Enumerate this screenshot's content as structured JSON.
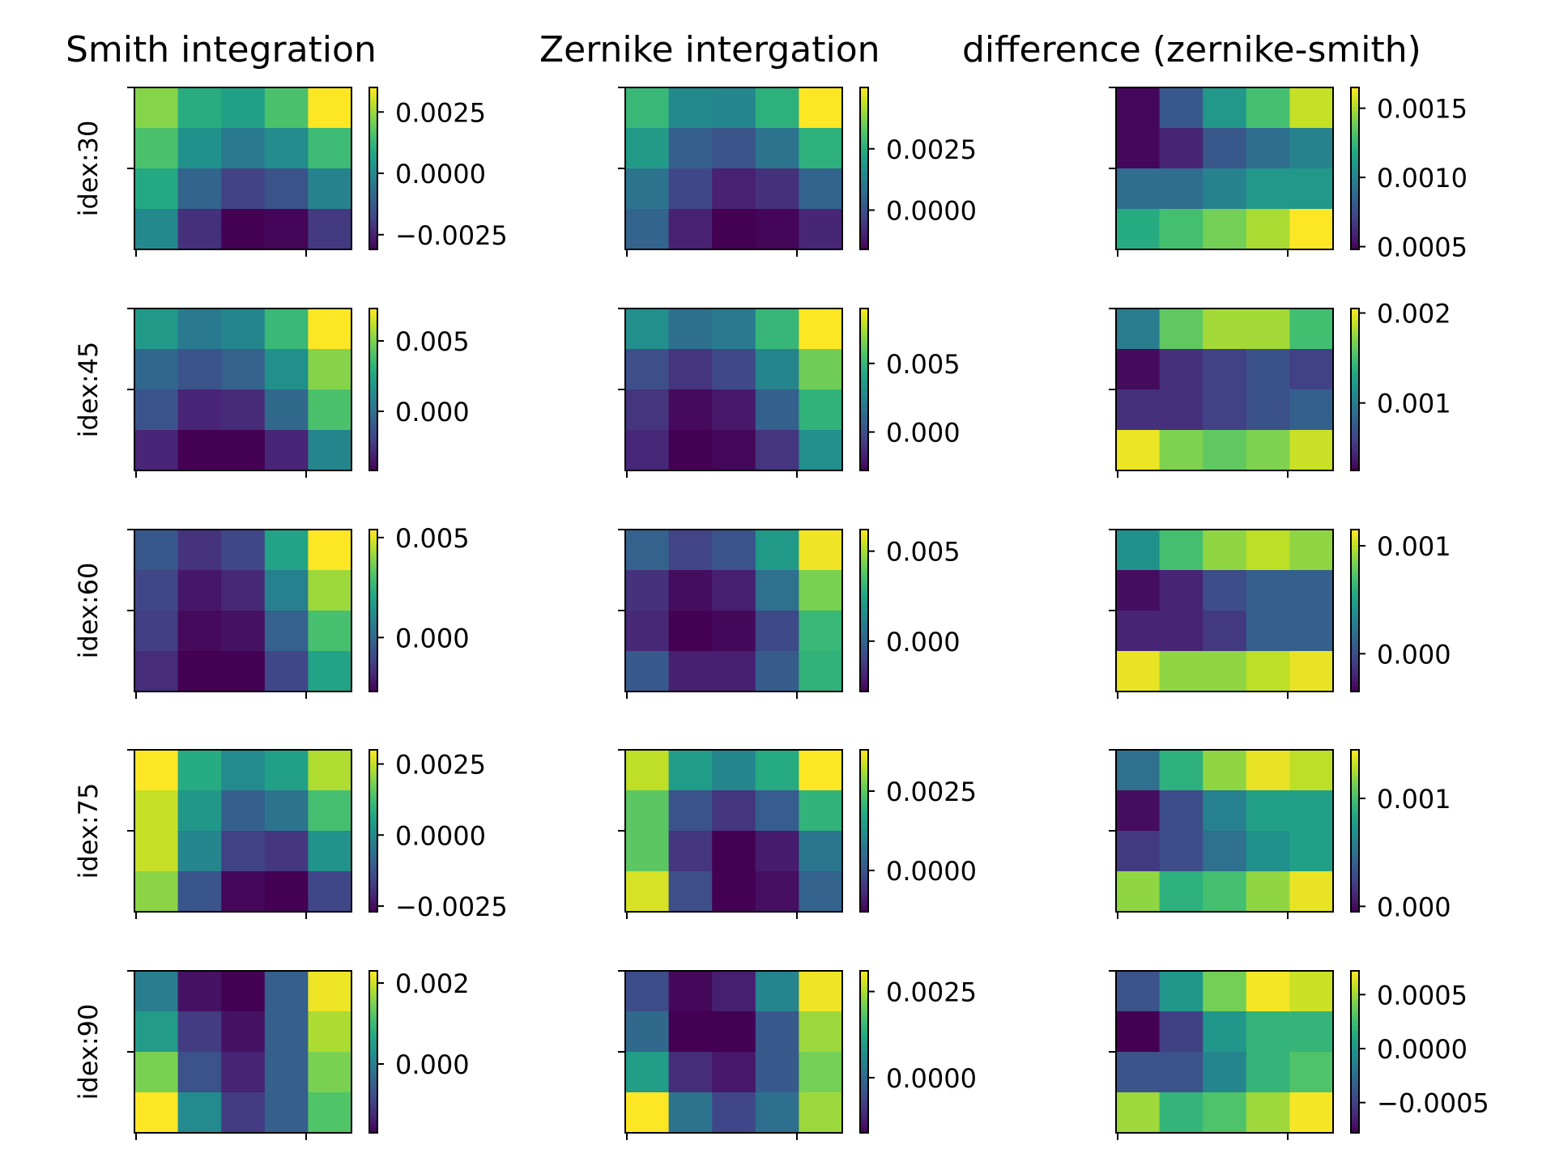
{
  "figure": {
    "column_titles": [
      "Smith integration",
      "Zernike intergation",
      "difference (zernike-smith)"
    ],
    "row_labels": [
      "idex:30",
      "idex:45",
      "idex:60",
      "idex:75",
      "idex:90"
    ]
  },
  "chart_data": {
    "type": "heatmap",
    "colormap": "viridis",
    "grid": false,
    "grid_shape": [
      4,
      5
    ],
    "rows": [
      {
        "label": "idex:30",
        "panels": [
          {
            "name": "Smith integration",
            "clim": [
              -0.0031,
              0.0035
            ],
            "cbar_ticks": [
              0.0025,
              0.0,
              -0.0025
            ],
            "cbar_tick_labels": [
              "0.0025",
              "0.0000",
              "−0.0025"
            ],
            "values": [
              [
                0.0023,
                0.001,
                0.0006,
                0.0016,
                0.0035
              ],
              [
                0.0016,
                0.0002,
                -0.0004,
                0.0001,
                0.0014
              ],
              [
                0.0009,
                -0.001,
                -0.0018,
                -0.0014,
                -0.0002
              ],
              [
                0.0,
                -0.0022,
                -0.0031,
                -0.003,
                -0.002
              ]
            ]
          },
          {
            "name": "Zernike intergation",
            "clim": [
              -0.0016,
              0.005
            ],
            "cbar_ticks": [
              0.0025,
              0.0
            ],
            "cbar_tick_labels": [
              "0.0025",
              "0.0000"
            ],
            "values": [
              [
                0.0028,
                0.0015,
                0.0014,
                0.0026,
                0.005
              ],
              [
                0.002,
                0.0004,
                0.0001,
                0.0009,
                0.0026
              ],
              [
                0.0009,
                -0.0002,
                -0.001,
                -0.0007,
                0.0005
              ],
              [
                0.0005,
                -0.001,
                -0.0016,
                -0.0015,
                -0.0009
              ]
            ]
          },
          {
            "name": "difference (zernike-smith)",
            "clim": [
              0.00048,
              0.00165
            ],
            "cbar_ticks": [
              0.0015,
              0.001,
              0.0005
            ],
            "cbar_tick_labels": [
              "0.0015",
              "0.0010",
              "0.0005"
            ],
            "values": [
              [
                0.0005,
                0.0008,
                0.0011,
                0.0013,
                0.00155
              ],
              [
                0.0005,
                0.0006,
                0.0008,
                0.0009,
                0.001
              ],
              [
                0.0009,
                0.0009,
                0.001,
                0.0011,
                0.0011
              ],
              [
                0.0012,
                0.0013,
                0.0014,
                0.0015,
                0.00165
              ]
            ]
          }
        ]
      },
      {
        "label": "idex:45",
        "panels": [
          {
            "name": "Smith integration",
            "clim": [
              -0.0042,
              0.0073
            ],
            "cbar_ticks": [
              0.005,
              0.0
            ],
            "cbar_tick_labels": [
              "0.005",
              "0.000"
            ],
            "values": [
              [
                0.002,
                0.0005,
                0.001,
                0.0035,
                0.0073
              ],
              [
                -0.0004,
                -0.0012,
                -0.0006,
                0.0015,
                0.0052
              ],
              [
                -0.0012,
                -0.003,
                -0.0028,
                -0.0003,
                0.004
              ],
              [
                -0.003,
                -0.0042,
                -0.0042,
                -0.003,
                0.001
              ]
            ]
          },
          {
            "name": "Zernike intergation",
            "clim": [
              -0.0028,
              0.009
            ],
            "cbar_ticks": [
              0.005,
              0.0
            ],
            "cbar_tick_labels": [
              "0.005",
              "0.000"
            ],
            "values": [
              [
                0.003,
                0.0015,
                0.002,
                0.005,
                0.009
              ],
              [
                0.0,
                -0.001,
                -0.0002,
                0.0025,
                0.0064
              ],
              [
                -0.001,
                -0.0025,
                -0.002,
                0.0008,
                0.0048
              ],
              [
                -0.0015,
                -0.0028,
                -0.0026,
                -0.001,
                0.003
              ]
            ]
          },
          {
            "name": "difference (zernike-smith)",
            "clim": [
              0.00025,
              0.00205
            ],
            "cbar_ticks": [
              0.002,
              0.001
            ],
            "cbar_tick_labels": [
              "0.002",
              "0.001"
            ],
            "values": [
              [
                0.001,
                0.0016,
                0.0018,
                0.0018,
                0.0015
              ],
              [
                0.0003,
                0.0005,
                0.0006,
                0.0007,
                0.0006
              ],
              [
                0.0005,
                0.0005,
                0.0006,
                0.0007,
                0.0008
              ],
              [
                0.002,
                0.0017,
                0.0016,
                0.0017,
                0.0019
              ]
            ]
          }
        ]
      },
      {
        "label": "idex:60",
        "panels": [
          {
            "name": "Smith integration",
            "clim": [
              -0.0027,
              0.0054
            ],
            "cbar_ticks": [
              0.005,
              0.0
            ],
            "cbar_tick_labels": [
              "0.005",
              "0.000"
            ],
            "values": [
              [
                -0.0005,
                -0.0015,
                -0.001,
                0.002,
                0.0054
              ],
              [
                -0.001,
                -0.0022,
                -0.0018,
                0.0008,
                0.0042
              ],
              [
                -0.0012,
                -0.0025,
                -0.0023,
                -0.0002,
                0.003
              ],
              [
                -0.0017,
                -0.0027,
                -0.0027,
                -0.001,
                0.002
              ]
            ]
          },
          {
            "name": "Zernike intergation",
            "clim": [
              -0.0028,
              0.0062
            ],
            "cbar_ticks": [
              0.005,
              0.0
            ],
            "cbar_tick_labels": [
              "0.005",
              "0.000"
            ],
            "values": [
              [
                0.0,
                -0.001,
                -0.0005,
                0.002,
                0.006
              ],
              [
                -0.0015,
                -0.0025,
                -0.002,
                0.0005,
                0.0044
              ],
              [
                -0.0018,
                -0.003,
                -0.0026,
                -0.0008,
                0.0032
              ],
              [
                -0.0003,
                -0.002,
                -0.002,
                -0.0002,
                0.003
              ]
            ]
          },
          {
            "name": "difference (zernike-smith)",
            "clim": [
              -0.00035,
              0.00115
            ],
            "cbar_ticks": [
              0.001,
              0.0
            ],
            "cbar_tick_labels": [
              "0.001",
              "0.000"
            ],
            "values": [
              [
                0.0004,
                0.0007,
                0.0009,
                0.001,
                0.0009
              ],
              [
                -0.0003,
                -0.0002,
                0.0,
                0.0001,
                0.0001
              ],
              [
                -0.0002,
                -0.0002,
                -0.0001,
                0.0001,
                0.0001
              ],
              [
                0.0011,
                0.0009,
                0.0009,
                0.001,
                0.0011
              ]
            ]
          }
        ]
      },
      {
        "label": "idex:75",
        "panels": [
          {
            "name": "Smith integration",
            "clim": [
              -0.0027,
              0.003
            ],
            "cbar_ticks": [
              0.0025,
              0.0,
              -0.0025
            ],
            "cbar_tick_labels": [
              "0.0025",
              "0.0000",
              "−0.0025"
            ],
            "values": [
              [
                0.003,
                0.0008,
                0.0,
                0.0005,
                0.0023
              ],
              [
                0.0025,
                0.0003,
                -0.001,
                -0.0005,
                0.0013
              ],
              [
                0.0025,
                -0.0001,
                -0.0016,
                -0.0018,
                0.0002
              ],
              [
                0.002,
                -0.0012,
                -0.0026,
                -0.0027,
                -0.0015
              ]
            ]
          },
          {
            "name": "Zernike intergation",
            "clim": [
              -0.0013,
              0.0038
            ],
            "cbar_ticks": [
              0.0025,
              0.0
            ],
            "cbar_tick_labels": [
              "0.0025",
              "0.0000"
            ],
            "values": [
              [
                0.0033,
                0.0015,
                0.001,
                0.0018,
                0.0038
              ],
              [
                0.0025,
                0.0,
                -0.0005,
                0.0002,
                0.002
              ],
              [
                0.0025,
                -0.0005,
                -0.0013,
                -0.0009,
                0.0007
              ],
              [
                0.0035,
                -0.0001,
                -0.0013,
                -0.0011,
                0.0003
              ]
            ]
          },
          {
            "name": "difference (zernike-smith)",
            "clim": [
              -5e-05,
              0.00145
            ],
            "cbar_ticks": [
              0.001,
              0.0
            ],
            "cbar_tick_labels": [
              "0.001",
              "0.000"
            ],
            "values": [
              [
                0.0005,
                0.0009,
                0.0012,
                0.0014,
                0.0013
              ],
              [
                0.0,
                0.0003,
                0.0006,
                0.0008,
                0.0008
              ],
              [
                0.0002,
                0.0003,
                0.0005,
                0.0007,
                0.0008
              ],
              [
                0.0012,
                0.0009,
                0.001,
                0.0012,
                0.0014
              ]
            ]
          }
        ]
      },
      {
        "label": "idex:90",
        "panels": [
          {
            "name": "Smith integration",
            "clim": [
              -0.0017,
              0.0023
            ],
            "cbar_ticks": [
              0.002,
              0.0
            ],
            "cbar_tick_labels": [
              "0.002",
              "0.000"
            ],
            "values": [
              [
                0.0,
                -0.0015,
                -0.0017,
                -0.0005,
                0.0022
              ],
              [
                0.0005,
                -0.001,
                -0.0015,
                -0.0005,
                0.0018
              ],
              [
                0.0015,
                -0.0007,
                -0.0013,
                -0.0005,
                0.0015
              ],
              [
                0.0023,
                0.0002,
                -0.001,
                -0.0005,
                0.0012
              ]
            ]
          },
          {
            "name": "Zernike intergation",
            "clim": [
              -0.0016,
              0.0031
            ],
            "cbar_ticks": [
              0.0025,
              0.0
            ],
            "cbar_tick_labels": [
              "0.0025",
              "0.0000"
            ],
            "values": [
              [
                -0.0005,
                -0.0015,
                -0.0012,
                0.0005,
                0.003
              ],
              [
                0.0,
                -0.0016,
                -0.0016,
                -0.0003,
                0.0024
              ],
              [
                0.001,
                -0.001,
                -0.0013,
                -0.0003,
                0.0021
              ],
              [
                0.0031,
                0.0002,
                -0.0006,
                0.0001,
                0.0024
              ]
            ]
          },
          {
            "name": "difference (zernike-smith)",
            "clim": [
              -0.00078,
              0.00072
            ],
            "cbar_ticks": [
              0.0005,
              0.0,
              -0.0005
            ],
            "cbar_tick_labels": [
              "0.0005",
              "0.0000",
              "−0.0005"
            ],
            "values": [
              [
                -0.0004,
                0.0,
                0.0004,
                0.0007,
                0.0006
              ],
              [
                -0.0008,
                -0.0005,
                0.0,
                0.0002,
                0.0002
              ],
              [
                -0.0004,
                -0.0004,
                -0.0001,
                0.0002,
                0.0003
              ],
              [
                0.0005,
                0.0002,
                0.0003,
                0.0005,
                0.0007
              ]
            ]
          }
        ]
      }
    ]
  }
}
